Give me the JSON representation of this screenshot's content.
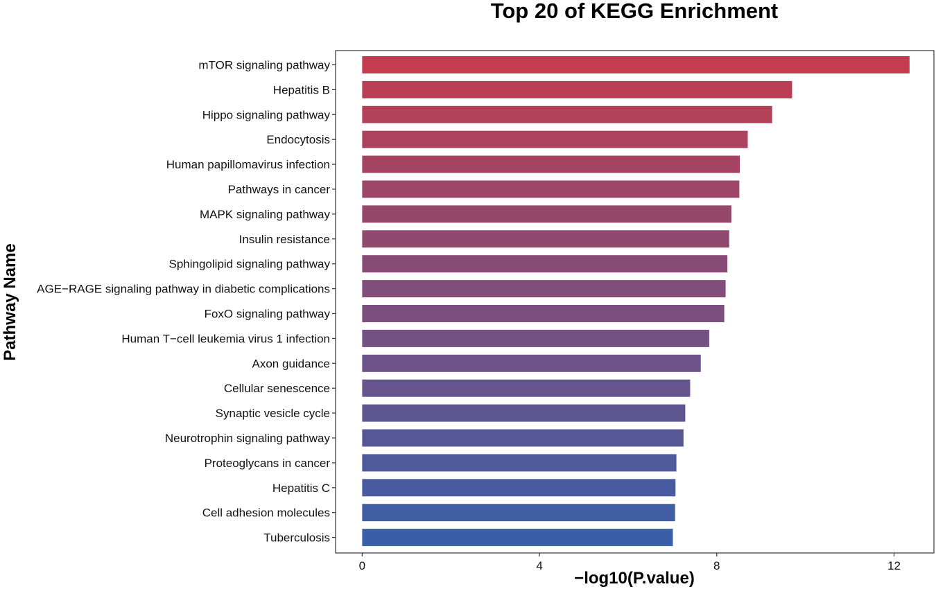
{
  "chart_data": {
    "type": "bar",
    "orientation": "horizontal",
    "title": "Top 20 of KEGG Enrichment",
    "xlabel": "−log10(P.value)",
    "ylabel": "Pathway Name",
    "xlim": [
      -0.6,
      12.9
    ],
    "xticks": [
      0,
      4,
      8,
      12
    ],
    "grid": false,
    "legend": "none",
    "gradient_colors": {
      "top": "#c13d4f",
      "bottom": "#3a5fa9"
    },
    "categories": [
      "mTOR signaling pathway",
      "Hepatitis B",
      "Hippo signaling pathway",
      "Endocytosis",
      "Human papillomavirus infection",
      "Pathways in cancer",
      "MAPK signaling pathway",
      "Insulin resistance",
      "Sphingolipid signaling pathway",
      "AGE−RAGE signaling pathway in diabetic complications",
      "FoxO signaling pathway",
      "Human T−cell leukemia virus 1 infection",
      "Axon guidance",
      "Cellular senescence",
      "Synaptic vesicle cycle",
      "Neurotrophin signaling pathway",
      "Proteoglycans in cancer",
      "Hepatitis C",
      "Cell adhesion molecules",
      "Tuberculosis"
    ],
    "values": [
      12.35,
      9.7,
      9.25,
      8.7,
      8.52,
      8.51,
      8.33,
      8.28,
      8.24,
      8.2,
      8.17,
      7.83,
      7.64,
      7.4,
      7.29,
      7.25,
      7.09,
      7.07,
      7.06,
      7.01
    ]
  }
}
